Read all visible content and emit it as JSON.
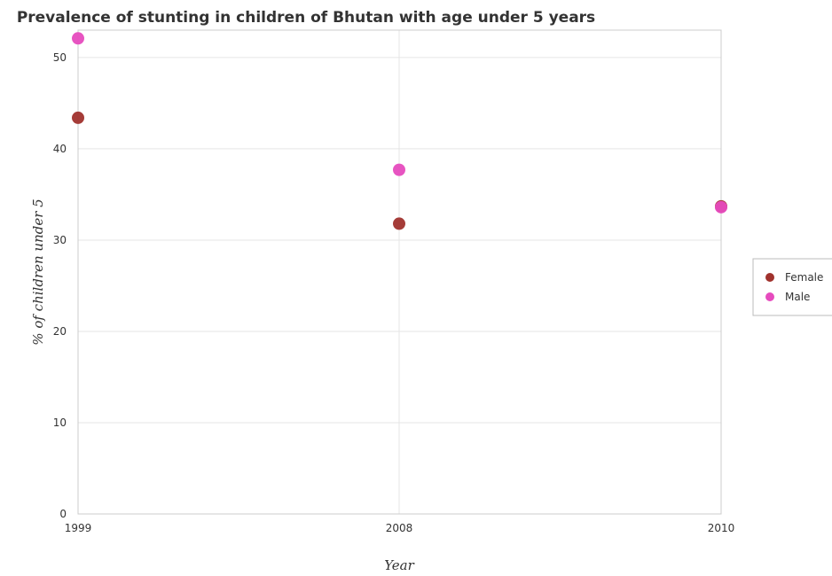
{
  "chart_data": {
    "type": "scatter",
    "title": "Prevalence of stunting in children of Bhutan with age under 5 years",
    "xlabel": "Year",
    "ylabel": "% of children under 5",
    "categories": [
      "1999",
      "2008",
      "2010"
    ],
    "ylim": [
      0,
      53
    ],
    "yticks": [
      0,
      10,
      20,
      30,
      40,
      50
    ],
    "grid": true,
    "legend_position": "right",
    "series": [
      {
        "name": "Female",
        "color": "#a0322d",
        "values": [
          43.4,
          31.8,
          33.7
        ]
      },
      {
        "name": "Male",
        "color": "#e64bbe",
        "values": [
          52.1,
          37.7,
          33.6
        ]
      }
    ]
  }
}
